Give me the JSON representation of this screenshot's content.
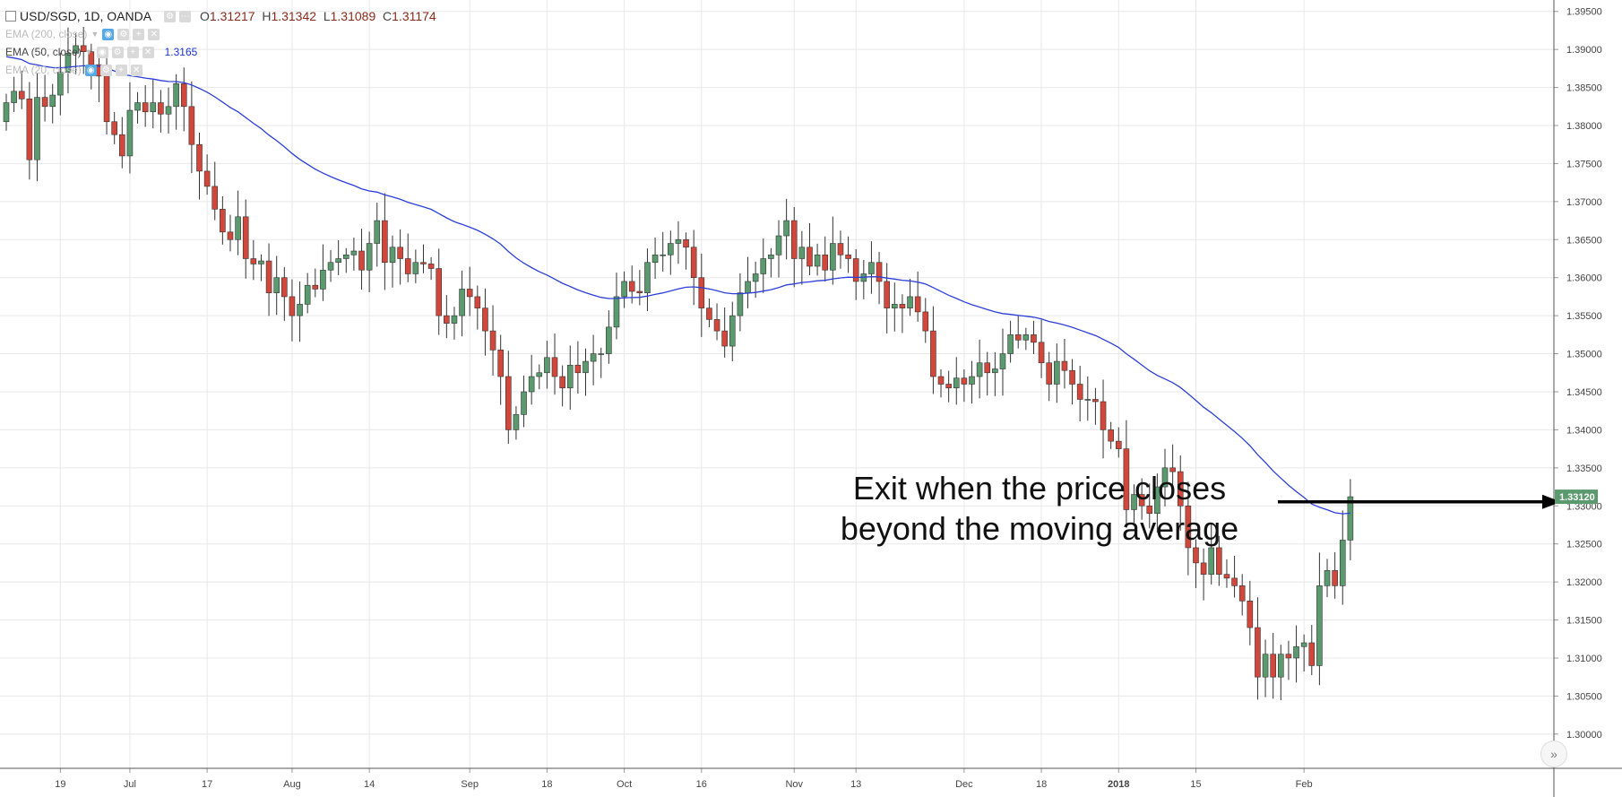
{
  "header": {
    "symbol": "USD/SGD, 1D, OANDA",
    "ohlc": {
      "o_label": "O",
      "o": "1.31217",
      "h_label": "H",
      "h": "1.31342",
      "l_label": "L",
      "l": "1.31089",
      "c_label": "C",
      "c": "1.31174"
    }
  },
  "indicators": [
    {
      "label": "EMA (200, close)",
      "value": "",
      "active": false
    },
    {
      "label": "EMA (50, close)",
      "value": "1.3165",
      "active": true
    },
    {
      "label": "EMA (20, close)",
      "value": "",
      "active": false
    }
  ],
  "annotation": {
    "line1": "Exit when the price closes",
    "line2": "beyond the moving average"
  },
  "colors": {
    "up": "#5a9a6e",
    "down": "#d2473b",
    "wick": "#333333",
    "ema": "#2b3fd8",
    "grid": "#e8e8e8",
    "axis_text": "#444444",
    "price_label_bg": "#5a9a6e",
    "arrow": "#000000"
  },
  "chart_data": {
    "type": "candlestick",
    "title": "USD/SGD, 1D, OANDA",
    "ylim": [
      1.2955,
      1.3965
    ],
    "y_ticks": [
      "1.39500",
      "1.39000",
      "1.38500",
      "1.38000",
      "1.37500",
      "1.37000",
      "1.36500",
      "1.36000",
      "1.35500",
      "1.35000",
      "1.34500",
      "1.34000",
      "1.33500",
      "1.33000",
      "1.32500",
      "1.32000",
      "1.31500",
      "1.31000",
      "1.30500",
      "1.30000"
    ],
    "x_ticks": [
      {
        "label": "19",
        "bar": 7,
        "bold": false
      },
      {
        "label": "Jul",
        "bar": 16,
        "bold": false
      },
      {
        "label": "17",
        "bar": 26,
        "bold": false
      },
      {
        "label": "Aug",
        "bar": 37,
        "bold": false
      },
      {
        "label": "14",
        "bar": 47,
        "bold": false
      },
      {
        "label": "Sep",
        "bar": 60,
        "bold": false
      },
      {
        "label": "18",
        "bar": 70,
        "bold": false
      },
      {
        "label": "Oct",
        "bar": 80,
        "bold": false
      },
      {
        "label": "16",
        "bar": 90,
        "bold": false
      },
      {
        "label": "Nov",
        "bar": 102,
        "bold": false
      },
      {
        "label": "13",
        "bar": 110,
        "bold": false
      },
      {
        "label": "Dec",
        "bar": 124,
        "bold": false
      },
      {
        "label": "18",
        "bar": 134,
        "bold": false
      },
      {
        "label": "2018",
        "bar": 144,
        "bold": true
      },
      {
        "label": "15",
        "bar": 154,
        "bold": false
      },
      {
        "label": "Feb",
        "bar": 168,
        "bold": false
      }
    ],
    "last_price": "1.33120",
    "last_price_value": 1.3312,
    "close_series": [
      1.383,
      1.3845,
      1.3835,
      1.3755,
      1.3837,
      1.3825,
      1.384,
      1.387,
      1.3895,
      1.3905,
      1.3897,
      1.388,
      1.3865,
      1.3805,
      1.3788,
      1.376,
      1.382,
      1.383,
      1.3818,
      1.383,
      1.3815,
      1.3825,
      1.3855,
      1.3825,
      1.3775,
      1.374,
      1.372,
      1.369,
      1.366,
      1.365,
      1.368,
      1.3625,
      1.3618,
      1.3622,
      1.358,
      1.36,
      1.3575,
      1.355,
      1.3565,
      1.359,
      1.3585,
      1.361,
      1.362,
      1.3625,
      1.363,
      1.3635,
      1.361,
      1.3645,
      1.3675,
      1.362,
      1.364,
      1.3625,
      1.3605,
      1.362,
      1.3618,
      1.3612,
      1.355,
      1.354,
      1.355,
      1.3585,
      1.3575,
      1.356,
      1.353,
      1.3505,
      1.347,
      1.34,
      1.342,
      1.345,
      1.347,
      1.3475,
      1.3495,
      1.347,
      1.3455,
      1.3485,
      1.3475,
      1.349,
      1.35,
      1.35,
      1.3535,
      1.3575,
      1.3595,
      1.3582,
      1.358,
      1.362,
      1.363,
      1.363,
      1.3645,
      1.365,
      1.364,
      1.36,
      1.356,
      1.3545,
      1.353,
      1.351,
      1.355,
      1.358,
      1.3595,
      1.3605,
      1.3625,
      1.363,
      1.3655,
      1.3675,
      1.3625,
      1.364,
      1.3615,
      1.363,
      1.361,
      1.3645,
      1.363,
      1.3625,
      1.3595,
      1.3605,
      1.362,
      1.3595,
      1.356,
      1.3565,
      1.356,
      1.3575,
      1.3555,
      1.353,
      1.347,
      1.346,
      1.3455,
      1.3468,
      1.346,
      1.347,
      1.3488,
      1.3475,
      1.348,
      1.35,
      1.3525,
      1.3518,
      1.3525,
      1.3515,
      1.3488,
      1.346,
      1.349,
      1.3478,
      1.346,
      1.344,
      1.344,
      1.3437,
      1.34,
      1.3385,
      1.3375,
      1.3295,
      1.3315,
      1.33,
      1.329,
      1.3325,
      1.335,
      1.3345,
      1.33,
      1.3245,
      1.3225,
      1.321,
      1.3245,
      1.321,
      1.3205,
      1.3195,
      1.3175,
      1.314,
      1.3075,
      1.3105,
      1.3075,
      1.3105,
      1.31,
      1.3115,
      1.312,
      1.309,
      1.3195,
      1.3215,
      1.3195,
      1.3255,
      1.3312
    ]
  }
}
